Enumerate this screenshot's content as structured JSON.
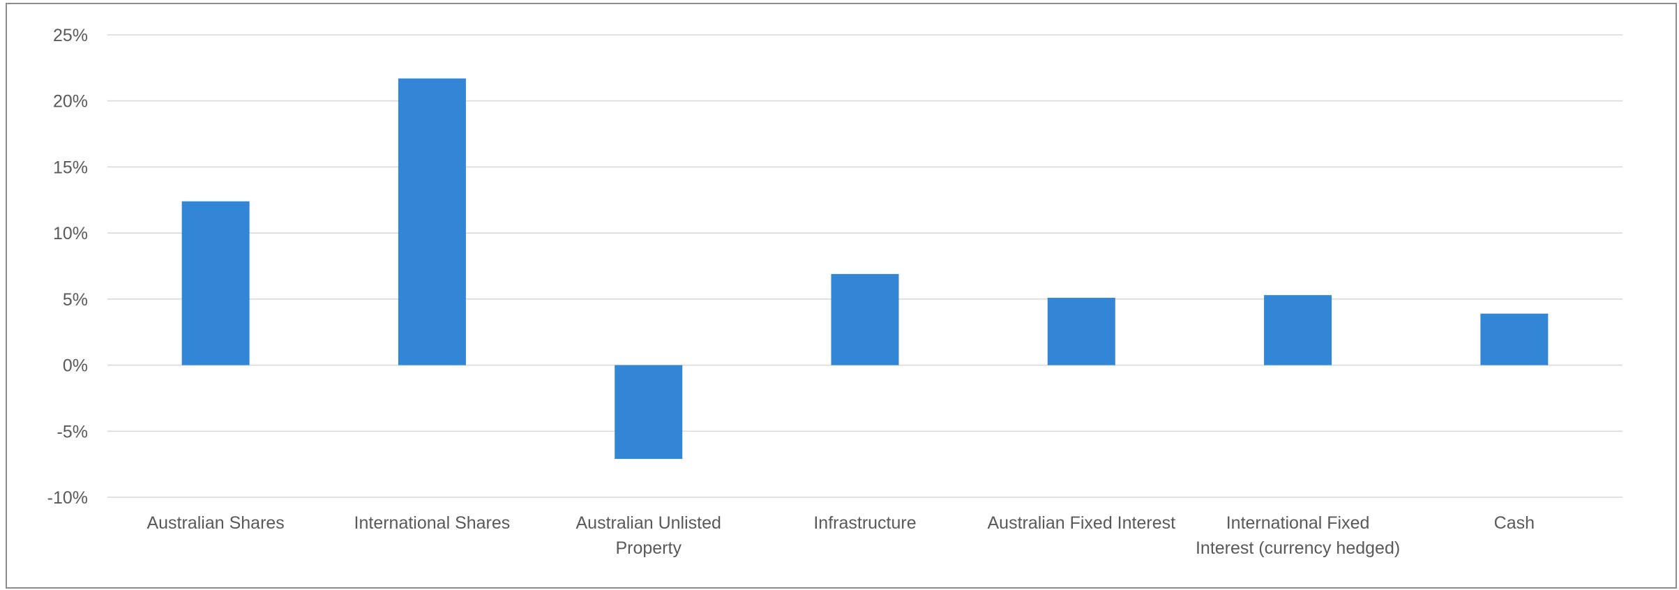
{
  "chart_data": {
    "type": "bar",
    "title": "",
    "xlabel": "",
    "ylabel": "",
    "categories": [
      "Australian Shares",
      "International Shares",
      "Australian Unlisted Property",
      "Infrastructure",
      "Australian Fixed Interest",
      "International Fixed Interest (currency hedged)",
      "Cash"
    ],
    "category_lines": [
      [
        "Australian Shares"
      ],
      [
        "International Shares"
      ],
      [
        "Australian Unlisted",
        "Property"
      ],
      [
        "Infrastructure"
      ],
      [
        "Australian Fixed Interest"
      ],
      [
        "International Fixed",
        "Interest (currency hedged)"
      ],
      [
        "Cash"
      ]
    ],
    "series": [
      {
        "values": [
          12.4,
          21.7,
          -7.1,
          6.9,
          5.1,
          5.3,
          3.9
        ],
        "color": "#3385d6"
      }
    ],
    "ylim": [
      -10,
      25
    ],
    "yticks": [
      25,
      20,
      15,
      10,
      5,
      0,
      -5,
      -10
    ],
    "ytick_labels": [
      "25%",
      "20%",
      "15%",
      "10%",
      "5%",
      "0%",
      "-5%",
      "-10%"
    ],
    "grid": true,
    "legend": "none",
    "colors": {
      "bar": "#3385d6",
      "grid": "#d9d9d9",
      "text": "#595959",
      "border": "#8c8c8c"
    }
  }
}
